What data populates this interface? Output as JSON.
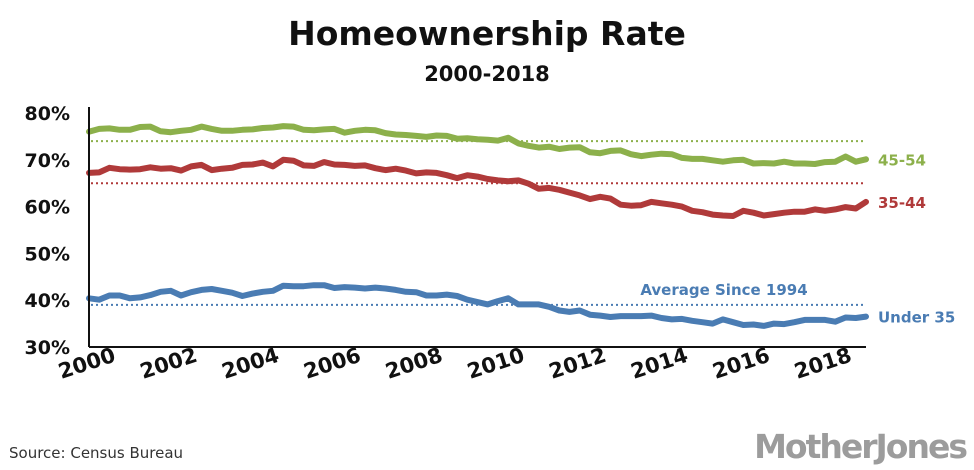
{
  "chart_data": {
    "type": "line",
    "title": "Homeownership Rate",
    "subtitle": "2000-2018",
    "xlabel": "",
    "ylabel": "",
    "xlim": [
      2000,
      2019
    ],
    "ylim": [
      30,
      80
    ],
    "x_ticks": [
      "2000",
      "2002",
      "2004",
      "2006",
      "2008",
      "2010",
      "2012",
      "2014",
      "2016",
      "2018"
    ],
    "y_ticks": [
      "80%",
      "70%",
      "60%",
      "50%",
      "40%",
      "30%"
    ],
    "grid": false,
    "series": [
      {
        "name": "45-54",
        "color": "#8cb04b",
        "average": 74,
        "values": [
          76.0,
          76.6,
          76.7,
          76.4,
          76.4,
          77.0,
          77.1,
          76.1,
          75.9,
          76.2,
          76.4,
          77.1,
          76.6,
          76.2,
          76.2,
          76.4,
          76.5,
          76.8,
          76.9,
          77.2,
          77.1,
          76.4,
          76.3,
          76.5,
          76.6,
          75.8,
          76.2,
          76.4,
          76.3,
          75.7,
          75.4,
          75.3,
          75.1,
          74.9,
          75.2,
          75.1,
          74.5,
          74.6,
          74.4,
          74.3,
          74.1,
          74.7,
          73.5,
          73.0,
          72.6,
          72.8,
          72.3,
          72.6,
          72.7,
          71.6,
          71.4,
          71.9,
          72.0,
          71.2,
          70.8,
          71.1,
          71.3,
          71.2,
          70.4,
          70.2,
          70.2,
          69.9,
          69.6,
          69.9,
          70.0,
          69.2,
          69.3,
          69.2,
          69.6,
          69.2,
          69.2,
          69.1,
          69.5,
          69.6,
          70.7,
          69.6,
          70.1
        ]
      },
      {
        "name": "35-44",
        "color": "#b03a3a",
        "average": 65,
        "values": [
          67.2,
          67.3,
          68.3,
          68.0,
          67.9,
          68.0,
          68.4,
          68.1,
          68.2,
          67.7,
          68.6,
          68.9,
          67.8,
          68.1,
          68.3,
          68.9,
          69.0,
          69.4,
          68.6,
          70.0,
          69.8,
          68.8,
          68.7,
          69.5,
          69.0,
          68.9,
          68.7,
          68.8,
          68.2,
          67.8,
          68.1,
          67.7,
          67.1,
          67.3,
          67.2,
          66.7,
          66.1,
          66.7,
          66.4,
          65.9,
          65.6,
          65.4,
          65.6,
          64.9,
          63.8,
          64.0,
          63.6,
          63.0,
          62.4,
          61.6,
          62.1,
          61.7,
          60.4,
          60.2,
          60.3,
          61.0,
          60.7,
          60.4,
          60.0,
          59.1,
          58.8,
          58.3,
          58.1,
          58.0,
          59.1,
          58.7,
          58.1,
          58.4,
          58.7,
          58.9,
          58.9,
          59.4,
          59.1,
          59.4,
          59.9,
          59.6,
          61.0
        ]
      },
      {
        "name": "Under 35",
        "color": "#4a7cb3",
        "average": 39,
        "average_label": "Average Since 1994",
        "values": [
          40.4,
          40.1,
          41.0,
          41.0,
          40.4,
          40.6,
          41.1,
          41.8,
          42.0,
          41.0,
          41.7,
          42.2,
          42.4,
          42.0,
          41.6,
          40.9,
          41.4,
          41.8,
          42.0,
          43.1,
          43.0,
          43.0,
          43.2,
          43.2,
          42.6,
          42.8,
          42.7,
          42.5,
          42.7,
          42.5,
          42.2,
          41.8,
          41.7,
          41.0,
          41.0,
          41.2,
          40.9,
          40.1,
          39.6,
          39.1,
          39.8,
          40.4,
          39.1,
          39.1,
          39.1,
          38.6,
          37.8,
          37.5,
          37.8,
          36.9,
          36.7,
          36.4,
          36.6,
          36.6,
          36.6,
          36.7,
          36.2,
          35.9,
          36.0,
          35.6,
          35.3,
          35.0,
          35.9,
          35.3,
          34.7,
          34.8,
          34.5,
          35.0,
          34.9,
          35.3,
          35.8,
          35.8,
          35.8,
          35.4,
          36.3,
          36.2,
          36.5
        ]
      }
    ]
  },
  "source": "Source: Census Bureau",
  "brand": "MotherJones",
  "colors": {
    "text": "#111111",
    "axis": "#111111"
  }
}
